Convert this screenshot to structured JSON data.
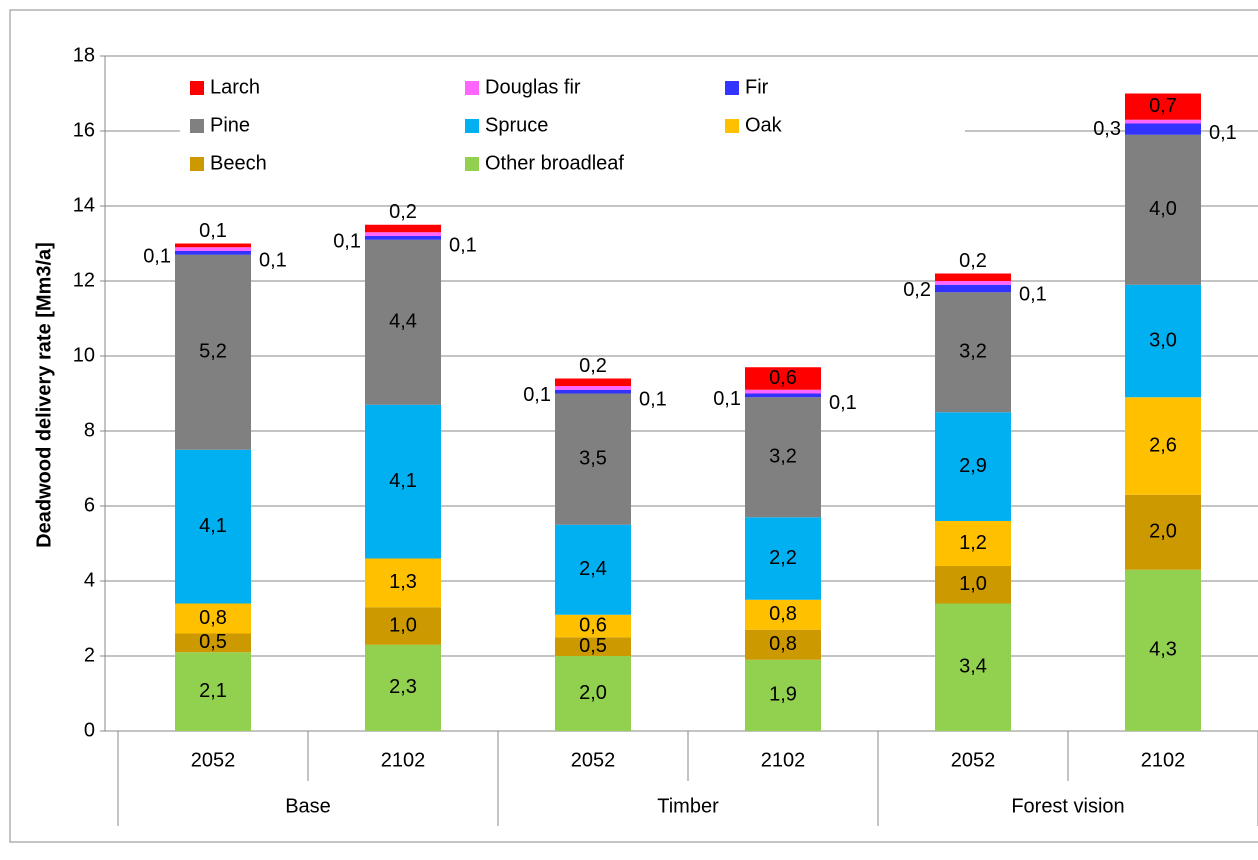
{
  "chart_data": {
    "type": "stacked_bar",
    "y_axis_label": "Deadwood delivery rate [Mm3/a]",
    "categories": [
      "2052",
      "2102",
      "2052",
      "2102",
      "2052",
      "2102"
    ],
    "groups": [
      "Base",
      "Timber",
      "Forest vision"
    ],
    "ylim": [
      0,
      18
    ],
    "yticks": [
      0,
      2,
      4,
      6,
      8,
      10,
      12,
      14,
      16,
      18
    ],
    "grid": true,
    "series": [
      {
        "name": "Other broadleaf",
        "color": "#92d050",
        "values": [
          2.1,
          2.3,
          2.0,
          1.9,
          3.4,
          4.3
        ],
        "value_labels": [
          "2,1",
          "2,3",
          "2,0",
          "1,9",
          "3,4",
          "4,3"
        ]
      },
      {
        "name": "Beech",
        "color": "#cc9900",
        "values": [
          0.5,
          1.0,
          0.5,
          0.8,
          1.0,
          2.0
        ],
        "value_labels": [
          "0,5",
          "1,0",
          "0,5",
          "0,8",
          "1,0",
          "2,0"
        ]
      },
      {
        "name": "Oak",
        "color": "#ffc000",
        "values": [
          0.8,
          1.3,
          0.6,
          0.8,
          1.2,
          2.6
        ],
        "value_labels": [
          "0,8",
          "1,3",
          "0,6",
          "0,8",
          "1,2",
          "2,6"
        ]
      },
      {
        "name": "Spruce",
        "color": "#00b0f0",
        "values": [
          4.1,
          4.1,
          2.4,
          2.2,
          2.9,
          3.0
        ],
        "value_labels": [
          "4,1",
          "4,1",
          "2,4",
          "2,2",
          "2,9",
          "3,0"
        ]
      },
      {
        "name": "Pine",
        "color": "#808080",
        "values": [
          5.2,
          4.4,
          3.5,
          3.2,
          3.2,
          4.0
        ],
        "value_labels": [
          "5,2",
          "4,4",
          "3,5",
          "3,2",
          "3,2",
          "4,0"
        ]
      },
      {
        "name": "Fir",
        "color": "#3333ff",
        "values": [
          0.1,
          0.1,
          0.1,
          0.1,
          0.2,
          0.3
        ],
        "value_labels": [
          "0,1",
          "0,1",
          "0,1",
          "0,1",
          "0,2",
          "0,3"
        ]
      },
      {
        "name": "Douglas fir",
        "color": "#ff66ff",
        "values": [
          0.1,
          0.1,
          0.1,
          0.1,
          0.1,
          0.1
        ],
        "value_labels": [
          "0,1",
          "0,1",
          "0,1",
          "0,1",
          "0,1",
          "0,1"
        ]
      },
      {
        "name": "Larch",
        "color": "#ff0000",
        "values": [
          0.1,
          0.2,
          0.2,
          0.6,
          0.2,
          0.7
        ],
        "value_labels": [
          "0,1",
          "0,2",
          "0,2",
          "0,6",
          "0,2",
          "0,7"
        ]
      }
    ]
  }
}
